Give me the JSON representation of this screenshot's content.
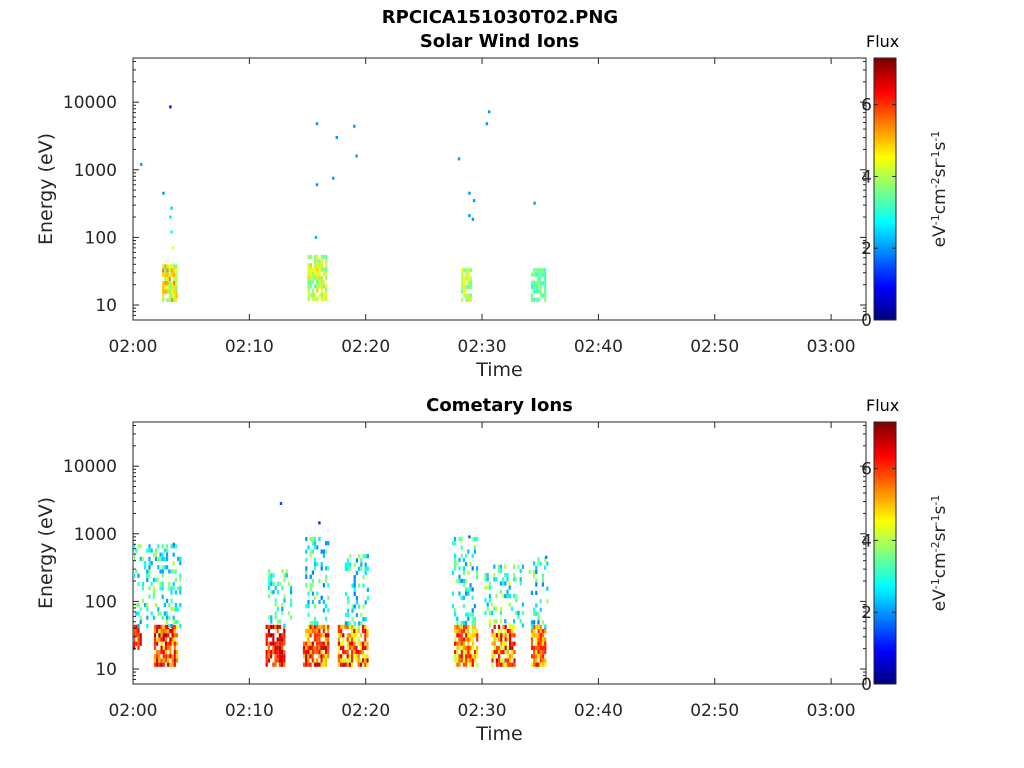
{
  "page": {
    "title": "RPCICA151030T02.PNG"
  },
  "chart_data": [
    {
      "type": "heatmap",
      "title": "Solar Wind Ions",
      "xlabel": "Time",
      "ylabel": "Energy (eV)",
      "x_ticks": [
        "02:00",
        "02:10",
        "02:20",
        "02:30",
        "02:40",
        "02:50",
        "03:00"
      ],
      "xlim_minutes": [
        0,
        63
      ],
      "y_scale": "log",
      "ylim": [
        6,
        45000
      ],
      "y_ticks": [
        10,
        100,
        1000,
        10000
      ],
      "y_tick_labels": [
        "10",
        "100",
        "1000",
        "10000"
      ],
      "colorbar": {
        "label": "Flux",
        "unit": "eV-1cm-2sr-1s-1",
        "range": [
          0,
          7.3
        ],
        "ticks": [
          0,
          2,
          4,
          6
        ]
      },
      "clusters": [
        {
          "time_min": [
            2.5,
            3.8
          ],
          "energy_eV": [
            12,
            40
          ],
          "flux": [
            3.5,
            5.5
          ]
        },
        {
          "time_min": [
            15.0,
            16.6
          ],
          "energy_eV": [
            12,
            55
          ],
          "flux": [
            3.2,
            5.0
          ]
        },
        {
          "time_min": [
            28.2,
            29.0
          ],
          "energy_eV": [
            12,
            35
          ],
          "flux": [
            3.5,
            4.6
          ]
        },
        {
          "time_min": [
            34.2,
            35.5
          ],
          "energy_eV": [
            12,
            35
          ],
          "flux": [
            3.0,
            3.8
          ]
        }
      ],
      "points": [
        {
          "time_min": 0.7,
          "energy_eV": 1200,
          "flux": 2.0
        },
        {
          "time_min": 3.2,
          "energy_eV": 8500,
          "flux": 1.0
        },
        {
          "time_min": 2.6,
          "energy_eV": 450,
          "flux": 2.0
        },
        {
          "time_min": 3.3,
          "energy_eV": 270,
          "flux": 2.4
        },
        {
          "time_min": 3.2,
          "energy_eV": 200,
          "flux": 2.6
        },
        {
          "time_min": 3.3,
          "energy_eV": 120,
          "flux": 2.8
        },
        {
          "time_min": 3.4,
          "energy_eV": 70,
          "flux": 4.5
        },
        {
          "time_min": 15.8,
          "energy_eV": 4800,
          "flux": 2.0
        },
        {
          "time_min": 15.8,
          "energy_eV": 600,
          "flux": 2.0
        },
        {
          "time_min": 15.7,
          "energy_eV": 100,
          "flux": 2.2
        },
        {
          "time_min": 17.2,
          "energy_eV": 750,
          "flux": 2.0
        },
        {
          "time_min": 17.5,
          "energy_eV": 3000,
          "flux": 2.0
        },
        {
          "time_min": 19.0,
          "energy_eV": 4400,
          "flux": 2.0
        },
        {
          "time_min": 19.2,
          "energy_eV": 1600,
          "flux": 2.0
        },
        {
          "time_min": 28.0,
          "energy_eV": 1450,
          "flux": 2.0
        },
        {
          "time_min": 28.9,
          "energy_eV": 450,
          "flux": 2.0
        },
        {
          "time_min": 29.3,
          "energy_eV": 350,
          "flux": 2.0
        },
        {
          "time_min": 28.9,
          "energy_eV": 210,
          "flux": 2.0
        },
        {
          "time_min": 29.2,
          "energy_eV": 185,
          "flux": 2.0
        },
        {
          "time_min": 30.4,
          "energy_eV": 4800,
          "flux": 2.0
        },
        {
          "time_min": 30.6,
          "energy_eV": 7200,
          "flux": 2.0
        },
        {
          "time_min": 34.5,
          "energy_eV": 320,
          "flux": 2.0
        }
      ]
    },
    {
      "type": "heatmap",
      "title": "Cometary Ions",
      "xlabel": "Time",
      "ylabel": "Energy (eV)",
      "x_ticks": [
        "02:00",
        "02:10",
        "02:20",
        "02:30",
        "02:40",
        "02:50",
        "03:00"
      ],
      "xlim_minutes": [
        0,
        63
      ],
      "y_scale": "log",
      "ylim": [
        6,
        45000
      ],
      "y_ticks": [
        10,
        100,
        1000,
        10000
      ],
      "y_tick_labels": [
        "10",
        "100",
        "1000",
        "10000"
      ],
      "colorbar": {
        "label": "Flux",
        "unit": "eV-1cm-2sr-1s-1",
        "range": [
          0,
          7.3
        ],
        "ticks": [
          0,
          2,
          4,
          6
        ]
      },
      "clusters": [
        {
          "time_min": [
            0.0,
            0.7
          ],
          "energy_eV": [
            20,
            45
          ],
          "flux": [
            5.8,
            6.8
          ]
        },
        {
          "time_min": [
            1.8,
            3.8
          ],
          "energy_eV": [
            12,
            45
          ],
          "flux": [
            4.5,
            7.0
          ]
        },
        {
          "time_min": [
            11.4,
            13.0
          ],
          "energy_eV": [
            12,
            45
          ],
          "flux": [
            5.5,
            7.2
          ]
        },
        {
          "time_min": [
            14.6,
            16.8
          ],
          "energy_eV": [
            12,
            45
          ],
          "flux": [
            4.5,
            7.0
          ]
        },
        {
          "time_min": [
            17.6,
            20.2
          ],
          "energy_eV": [
            12,
            45
          ],
          "flux": [
            4.0,
            6.8
          ]
        },
        {
          "time_min": [
            27.6,
            29.5
          ],
          "energy_eV": [
            12,
            45
          ],
          "flux": [
            4.0,
            6.5
          ]
        },
        {
          "time_min": [
            30.8,
            32.8
          ],
          "energy_eV": [
            12,
            45
          ],
          "flux": [
            4.0,
            6.8
          ]
        },
        {
          "time_min": [
            34.2,
            35.4
          ],
          "energy_eV": [
            12,
            45
          ],
          "flux": [
            4.5,
            6.5
          ]
        }
      ],
      "scatter_regions": [
        {
          "time_min": [
            0.0,
            4.0
          ],
          "energy_eV": [
            45,
            700
          ],
          "flux": [
            2.0,
            4.0
          ]
        },
        {
          "time_min": [
            11.6,
            13.5
          ],
          "energy_eV": [
            45,
            300
          ],
          "flux": [
            2.0,
            4.0
          ]
        },
        {
          "time_min": [
            14.8,
            16.8
          ],
          "energy_eV": [
            45,
            900
          ],
          "flux": [
            1.8,
            4.0
          ]
        },
        {
          "time_min": [
            18.2,
            20.2
          ],
          "energy_eV": [
            45,
            500
          ],
          "flux": [
            1.8,
            4.0
          ]
        },
        {
          "time_min": [
            27.4,
            29.5
          ],
          "energy_eV": [
            45,
            900
          ],
          "flux": [
            1.8,
            4.0
          ]
        },
        {
          "time_min": [
            30.2,
            33.5
          ],
          "energy_eV": [
            45,
            350
          ],
          "flux": [
            2.0,
            4.5
          ]
        },
        {
          "time_min": [
            34.0,
            35.6
          ],
          "energy_eV": [
            45,
            450
          ],
          "flux": [
            1.8,
            4.0
          ]
        }
      ],
      "points": [
        {
          "time_min": 3.5,
          "energy_eV": 700,
          "flux": 1.8
        },
        {
          "time_min": 12.7,
          "energy_eV": 2800,
          "flux": 1.5
        },
        {
          "time_min": 16.0,
          "energy_eV": 1450,
          "flux": 1.2
        },
        {
          "time_min": 28.9,
          "energy_eV": 900,
          "flux": 1.6
        },
        {
          "time_min": 35.5,
          "energy_eV": 450,
          "flux": 1.8
        }
      ]
    }
  ]
}
